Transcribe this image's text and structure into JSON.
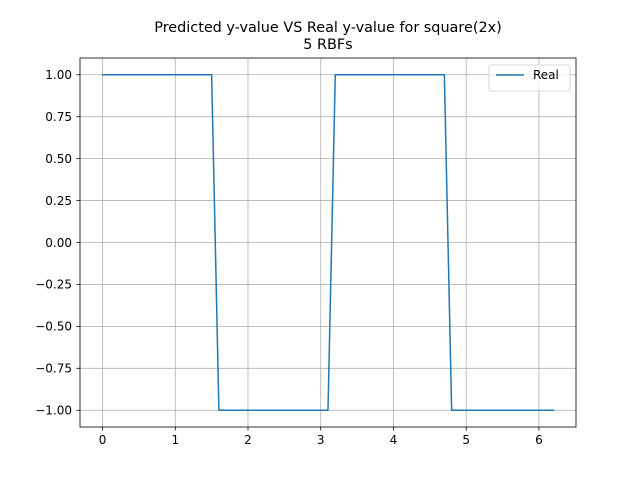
{
  "chart_data": {
    "type": "line",
    "title": "Predicted y-value VS Real y-value for square(2x)",
    "subtitle": "5 RBFs",
    "xlabel": "",
    "ylabel": "",
    "xlim": [
      -0.31,
      6.51
    ],
    "ylim": [
      -1.1,
      1.1
    ],
    "x_ticks": [
      0,
      1,
      2,
      3,
      4,
      5,
      6
    ],
    "x_tick_labels": [
      "0",
      "1",
      "2",
      "3",
      "4",
      "5",
      "6"
    ],
    "y_ticks": [
      -1.0,
      -0.75,
      -0.5,
      -0.25,
      0.0,
      0.25,
      0.5,
      0.75,
      1.0
    ],
    "y_tick_labels": [
      "−1.00",
      "−0.75",
      "−0.50",
      "−0.25",
      "0.00",
      "0.25",
      "0.50",
      "0.75",
      "1.00"
    ],
    "grid": true,
    "legend_position": "top-right",
    "series": [
      {
        "name": "Real",
        "color": "#1f77b4",
        "x": [
          0.0,
          1.5,
          1.6,
          3.1,
          3.2,
          4.7,
          4.8,
          6.2
        ],
        "y": [
          1.0,
          1.0,
          -1.0,
          -1.0,
          1.0,
          1.0,
          -1.0,
          -1.0
        ]
      }
    ]
  }
}
